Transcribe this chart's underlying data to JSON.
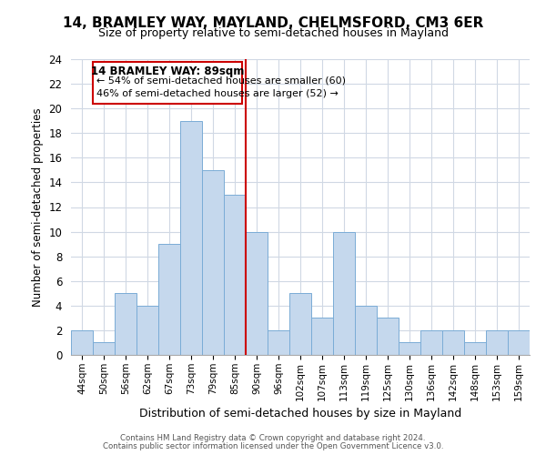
{
  "title": "14, BRAMLEY WAY, MAYLAND, CHELMSFORD, CM3 6ER",
  "subtitle": "Size of property relative to semi-detached houses in Mayland",
  "xlabel": "Distribution of semi-detached houses by size in Mayland",
  "ylabel": "Number of semi-detached properties",
  "bin_labels": [
    "44sqm",
    "50sqm",
    "56sqm",
    "62sqm",
    "67sqm",
    "73sqm",
    "79sqm",
    "85sqm",
    "90sqm",
    "96sqm",
    "102sqm",
    "107sqm",
    "113sqm",
    "119sqm",
    "125sqm",
    "130sqm",
    "136sqm",
    "142sqm",
    "148sqm",
    "153sqm",
    "159sqm"
  ],
  "bar_heights": [
    2,
    1,
    5,
    4,
    9,
    19,
    15,
    13,
    10,
    2,
    5,
    3,
    10,
    4,
    3,
    1,
    2,
    2,
    1,
    2,
    2
  ],
  "bar_color": "#c5d8ed",
  "bar_edge_color": "#7aacd6",
  "vline_x": 7.5,
  "ylim": [
    0,
    24
  ],
  "yticks": [
    0,
    2,
    4,
    6,
    8,
    10,
    12,
    14,
    16,
    18,
    20,
    22,
    24
  ],
  "annotation_title": "14 BRAMLEY WAY: 89sqm",
  "annotation_line1": "← 54% of semi-detached houses are smaller (60)",
  "annotation_line2": "46% of semi-detached houses are larger (52) →",
  "annotation_box_color": "#ffffff",
  "annotation_box_edge": "#cc0000",
  "vline_color": "#cc0000",
  "footer1": "Contains HM Land Registry data © Crown copyright and database right 2024.",
  "footer2": "Contains public sector information licensed under the Open Government Licence v3.0.",
  "bg_color": "#ffffff",
  "grid_color": "#d0d8e4"
}
